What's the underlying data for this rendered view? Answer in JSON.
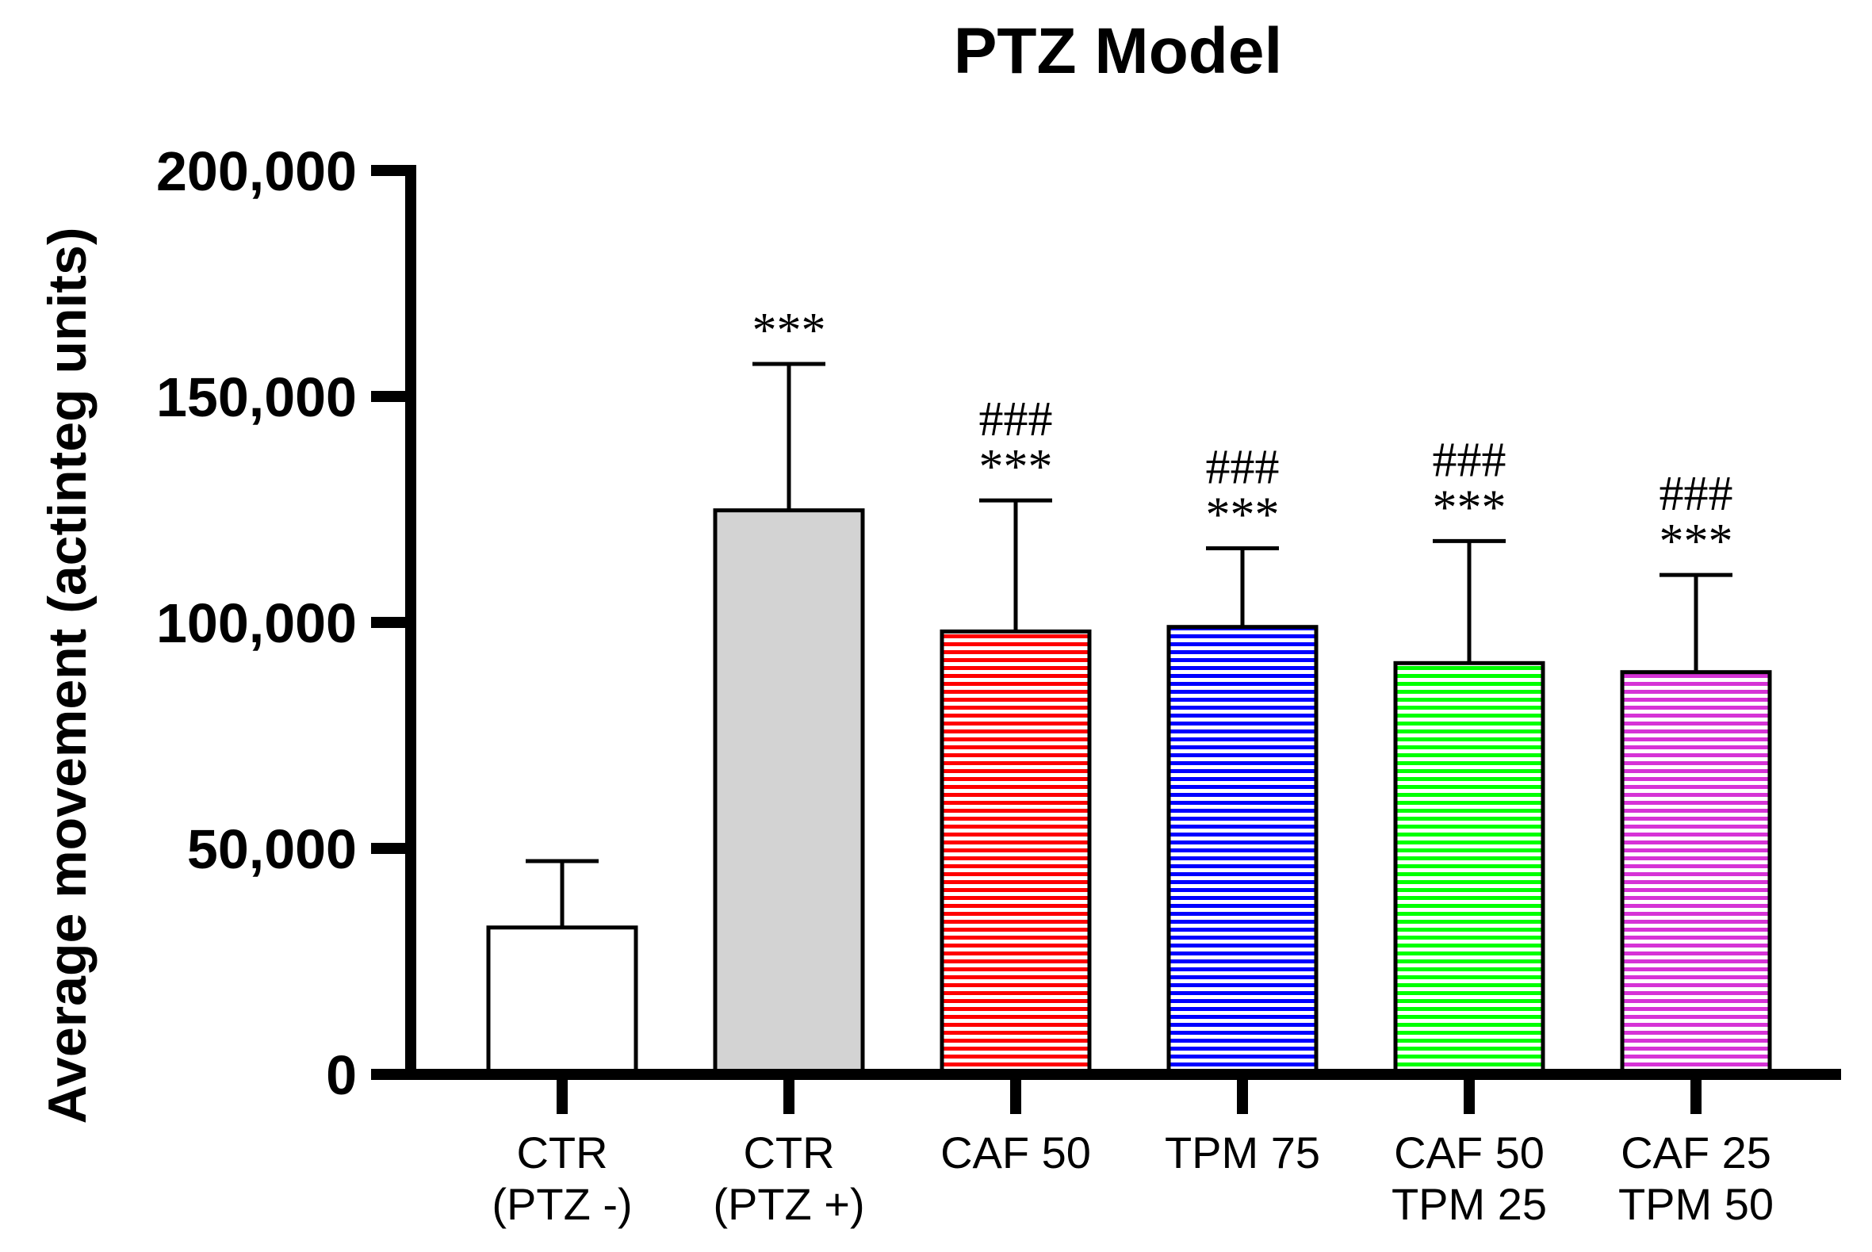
{
  "chart_data": {
    "type": "bar",
    "title": "PTZ Model",
    "xlabel": "",
    "ylabel": "Average movement (actinteg units)",
    "ylim": [
      0,
      200000
    ],
    "yticks": [
      0,
      50000,
      100000,
      150000,
      200000
    ],
    "ytick_labels": [
      "0",
      "50,000",
      "100,000",
      "150,000",
      "200,000"
    ],
    "grid": false,
    "legend": "none",
    "categories": [
      [
        "CTR",
        "(PTZ -)"
      ],
      [
        "CTR",
        "(PTZ +)"
      ],
      [
        "CAF 50"
      ],
      [
        "TPM 75"
      ],
      [
        "CAF 50",
        "TPM 25"
      ],
      [
        "CAF 25",
        "TPM 50"
      ]
    ],
    "values": [
      32500,
      124800,
      98000,
      99000,
      91000,
      89000
    ],
    "errors": [
      14700,
      32400,
      29000,
      17400,
      27000,
      21500
    ],
    "colors": [
      "#ffffff",
      "#d3d3d3",
      "#ff0000",
      "#0000ff",
      "#00ff00",
      "#d633d6"
    ],
    "patterns": [
      "solid",
      "solid",
      "horizontal-stripes",
      "horizontal-stripes",
      "horizontal-stripes",
      "horizontal-stripes"
    ],
    "annotations": [
      [],
      [
        "***"
      ],
      [
        "###",
        "***"
      ],
      [
        "###",
        "***"
      ],
      [
        "###",
        "***"
      ],
      [
        "###",
        "***"
      ]
    ]
  }
}
